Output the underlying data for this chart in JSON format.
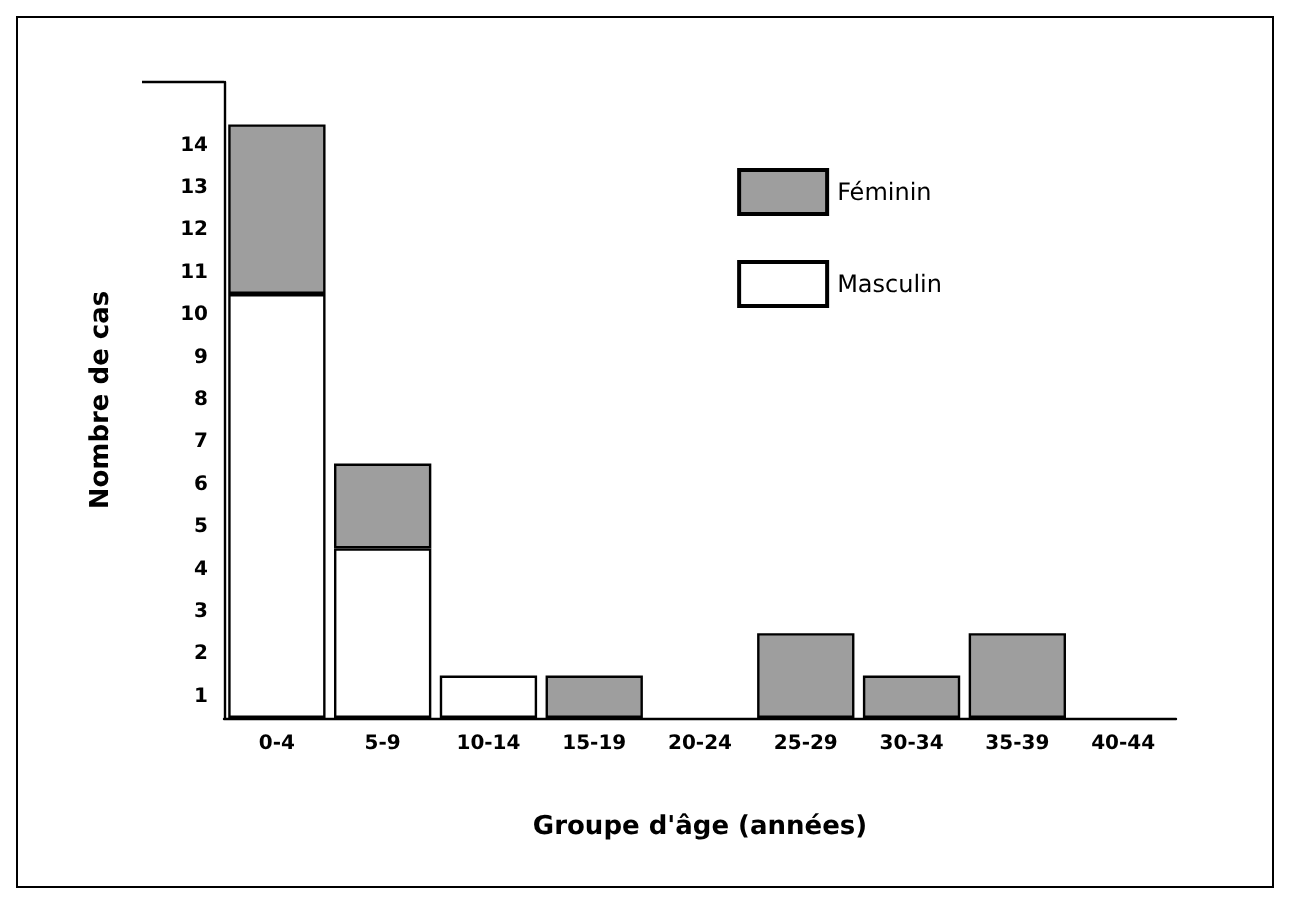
{
  "chart_data": {
    "type": "bar",
    "stacked": true,
    "xlabel": "Groupe d'âge (années)",
    "ylabel": "Nombre de cas",
    "categories": [
      "0-4",
      "5-9",
      "10-14",
      "15-19",
      "20-24",
      "25-29",
      "30-34",
      "35-39",
      "40-44"
    ],
    "series": [
      {
        "name": "Masculin",
        "color": "#ffffff",
        "values": [
          10,
          4,
          1,
          0,
          0,
          0,
          0,
          0,
          0
        ]
      },
      {
        "name": "Féminin",
        "color": "#9e9e9e",
        "values": [
          4,
          2,
          0,
          1,
          0,
          2,
          1,
          2,
          0
        ]
      }
    ],
    "ylim": [
      0,
      15
    ],
    "yticks": [
      {
        "value": 0.5,
        "label": "1"
      },
      {
        "value": 1.5,
        "label": "2"
      },
      {
        "value": 2.5,
        "label": "3"
      },
      {
        "value": 3.5,
        "label": "4"
      },
      {
        "value": 4.5,
        "label": "5"
      },
      {
        "value": 5.5,
        "label": "6"
      },
      {
        "value": 6.5,
        "label": "7"
      },
      {
        "value": 7.5,
        "label": "8"
      },
      {
        "value": 8.5,
        "label": "9"
      },
      {
        "value": 9.5,
        "label": "10"
      },
      {
        "value": 10.5,
        "label": "11"
      },
      {
        "value": 11.5,
        "label": "12"
      },
      {
        "value": 12.5,
        "label": "13"
      },
      {
        "value": 13.5,
        "label": "14"
      }
    ],
    "legend": "top right",
    "grid": false
  }
}
